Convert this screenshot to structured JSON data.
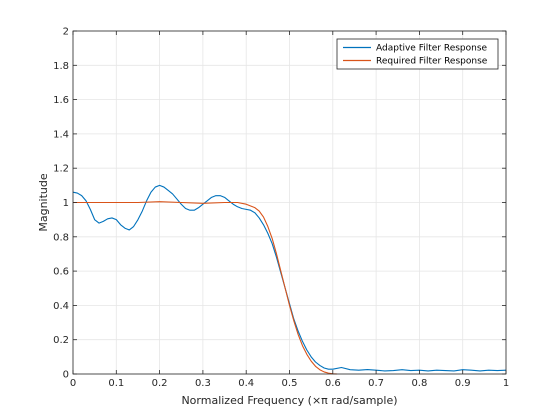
{
  "chart_data": {
    "type": "line",
    "title": "",
    "xlabel": "Normalized Frequency  (×π rad/sample)",
    "ylabel": "Magnitude",
    "xlim": [
      0,
      1
    ],
    "ylim": [
      0,
      2
    ],
    "x_ticks": [
      0,
      0.1,
      0.2,
      0.3,
      0.4,
      0.5,
      0.6,
      0.7,
      0.8,
      0.9,
      1
    ],
    "x_tick_labels": [
      "0",
      "0.1",
      "0.2",
      "0.3",
      "0.4",
      "0.5",
      "0.6",
      "0.7",
      "0.8",
      "0.9",
      "1"
    ],
    "y_ticks": [
      0,
      0.2,
      0.4,
      0.6,
      0.8,
      1,
      1.2,
      1.4,
      1.6,
      1.8,
      2
    ],
    "y_tick_labels": [
      "0",
      "0.2",
      "0.4",
      "0.6",
      "0.8",
      "1",
      "1.2",
      "1.4",
      "1.6",
      "1.8",
      "2"
    ],
    "grid": true,
    "legend_position": "top-right",
    "series": [
      {
        "name": "Adaptive Filter Response",
        "color": "#0072BD",
        "x": [
          0,
          0.01,
          0.02,
          0.03,
          0.04,
          0.05,
          0.06,
          0.07,
          0.08,
          0.09,
          0.1,
          0.11,
          0.12,
          0.13,
          0.14,
          0.15,
          0.16,
          0.17,
          0.18,
          0.19,
          0.2,
          0.21,
          0.22,
          0.23,
          0.24,
          0.25,
          0.26,
          0.27,
          0.28,
          0.29,
          0.3,
          0.31,
          0.32,
          0.33,
          0.34,
          0.35,
          0.36,
          0.37,
          0.38,
          0.39,
          0.4,
          0.41,
          0.42,
          0.43,
          0.44,
          0.45,
          0.46,
          0.47,
          0.48,
          0.49,
          0.5,
          0.51,
          0.52,
          0.53,
          0.54,
          0.55,
          0.56,
          0.57,
          0.58,
          0.59,
          0.6,
          0.62,
          0.64,
          0.66,
          0.68,
          0.7,
          0.72,
          0.74,
          0.76,
          0.78,
          0.8,
          0.82,
          0.84,
          0.86,
          0.88,
          0.9,
          0.92,
          0.94,
          0.96,
          0.98,
          1.0
        ],
        "y": [
          1.06,
          1.055,
          1.04,
          1.01,
          0.96,
          0.9,
          0.88,
          0.89,
          0.905,
          0.91,
          0.9,
          0.87,
          0.85,
          0.84,
          0.86,
          0.9,
          0.95,
          1.01,
          1.06,
          1.09,
          1.1,
          1.09,
          1.07,
          1.05,
          1.02,
          0.99,
          0.965,
          0.955,
          0.955,
          0.97,
          0.99,
          1.01,
          1.03,
          1.04,
          1.04,
          1.03,
          1.01,
          0.99,
          0.975,
          0.965,
          0.96,
          0.955,
          0.94,
          0.91,
          0.87,
          0.82,
          0.76,
          0.68,
          0.59,
          0.5,
          0.41,
          0.32,
          0.25,
          0.19,
          0.14,
          0.1,
          0.07,
          0.05,
          0.035,
          0.028,
          0.028,
          0.038,
          0.025,
          0.022,
          0.026,
          0.022,
          0.018,
          0.02,
          0.025,
          0.02,
          0.022,
          0.018,
          0.022,
          0.02,
          0.018,
          0.025,
          0.022,
          0.018,
          0.022,
          0.02,
          0.022
        ]
      },
      {
        "name": "Required Filter Response",
        "color": "#D95319",
        "x": [
          0,
          0.05,
          0.1,
          0.15,
          0.2,
          0.25,
          0.3,
          0.35,
          0.38,
          0.4,
          0.42,
          0.43,
          0.44,
          0.45,
          0.46,
          0.47,
          0.48,
          0.49,
          0.5,
          0.51,
          0.52,
          0.53,
          0.54,
          0.55,
          0.56,
          0.57,
          0.58,
          0.59,
          0.6,
          0.61
        ],
        "y": [
          1.0,
          1.0,
          1.0,
          1.0,
          1.005,
          1.0,
          0.995,
          1.0,
          1.0,
          0.99,
          0.97,
          0.95,
          0.915,
          0.86,
          0.79,
          0.7,
          0.6,
          0.5,
          0.4,
          0.31,
          0.23,
          0.165,
          0.115,
          0.075,
          0.045,
          0.025,
          0.012,
          0.005,
          0.001,
          0.0
        ]
      }
    ]
  }
}
